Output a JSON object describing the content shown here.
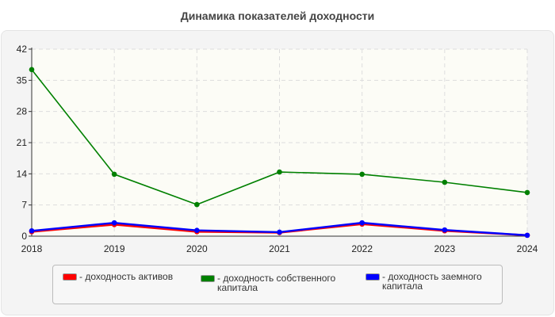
{
  "chart_data": {
    "type": "line",
    "title": "Динамика показателей доходности",
    "categories": [
      "2018",
      "2019",
      "2020",
      "2021",
      "2022",
      "2023",
      "2024"
    ],
    "ylim": [
      0,
      42
    ],
    "yticks": [
      0,
      7,
      14,
      21,
      28,
      35,
      42
    ],
    "grid": true,
    "legend_placement": "bottom",
    "series": [
      {
        "name": "- доходность активов",
        "color": "#ff0000",
        "values": [
          1.0,
          2.6,
          1.0,
          0.8,
          2.7,
          1.2,
          0.2
        ]
      },
      {
        "name": "- доходность собственного капитала",
        "color": "#008000",
        "values": [
          37.4,
          13.9,
          7.1,
          14.4,
          13.9,
          12.1,
          9.8
        ]
      },
      {
        "name": "- доходность заемного капитала",
        "color": "#0000ff",
        "values": [
          1.2,
          3.0,
          1.3,
          0.9,
          3.0,
          1.4,
          0.2
        ]
      }
    ]
  }
}
